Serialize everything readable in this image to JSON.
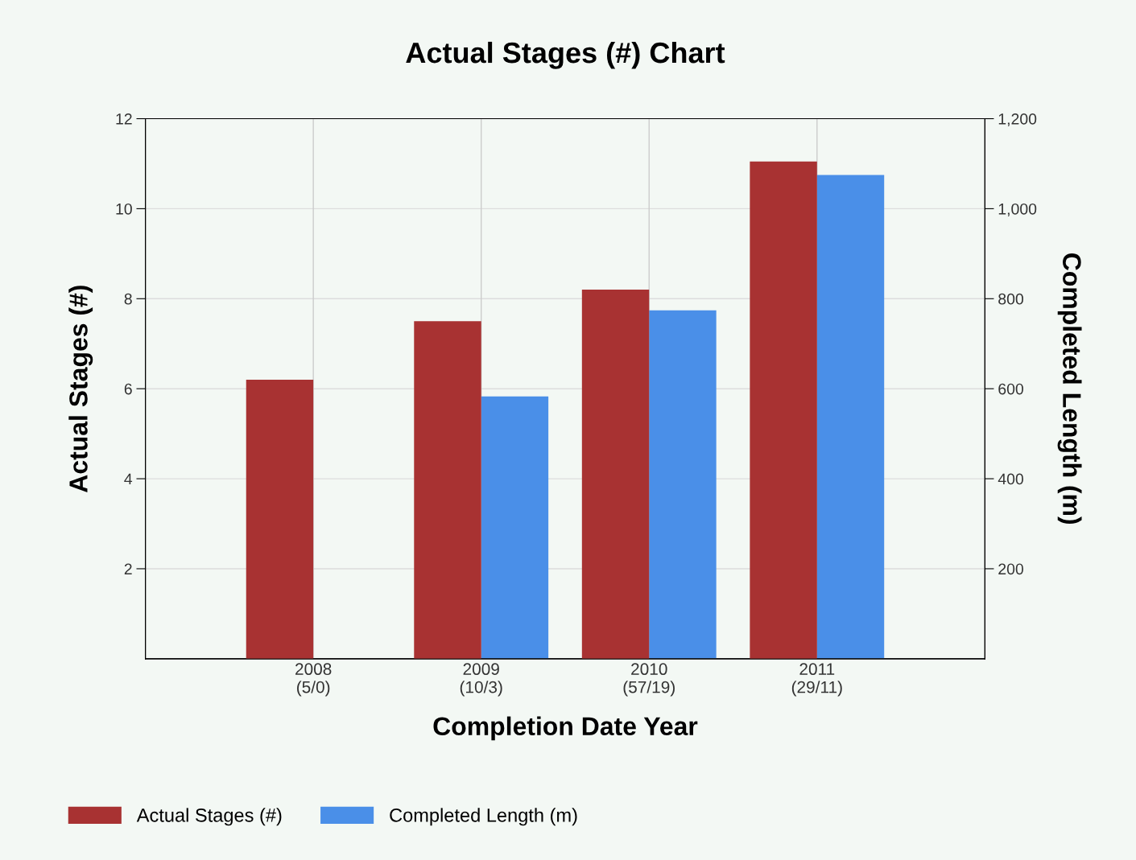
{
  "chart_data": {
    "type": "bar",
    "title": "Actual Stages (#) Chart",
    "xlabel": "Completion Date Year",
    "ylabel": "Actual Stages (#)",
    "y2label": "Completed Length (m)",
    "categories": [
      "2008\n(5/0)",
      "2009\n(10/3)",
      "2010\n(57/19)",
      "2011\n(29/11)"
    ],
    "series": [
      {
        "name": "Actual Stages (#)",
        "color": "#a83232",
        "values": [
          6.2,
          7.5,
          8.2,
          11.05
        ]
      },
      {
        "name": "Completed Length (m)",
        "color": "#4a8fe8",
        "axis": "y2",
        "values": [
          null,
          583,
          774,
          1075
        ]
      }
    ],
    "ylim": [
      0,
      12
    ],
    "yticks": [
      2,
      4,
      6,
      8,
      10,
      12
    ],
    "y2lim": [
      0,
      1200
    ],
    "y2ticks": [
      200,
      400,
      600,
      800,
      {
        "value": 1000,
        "label": "1,000"
      },
      {
        "value": 1200,
        "label": "1,200"
      }
    ],
    "grid": true,
    "legend": "bottom left"
  }
}
